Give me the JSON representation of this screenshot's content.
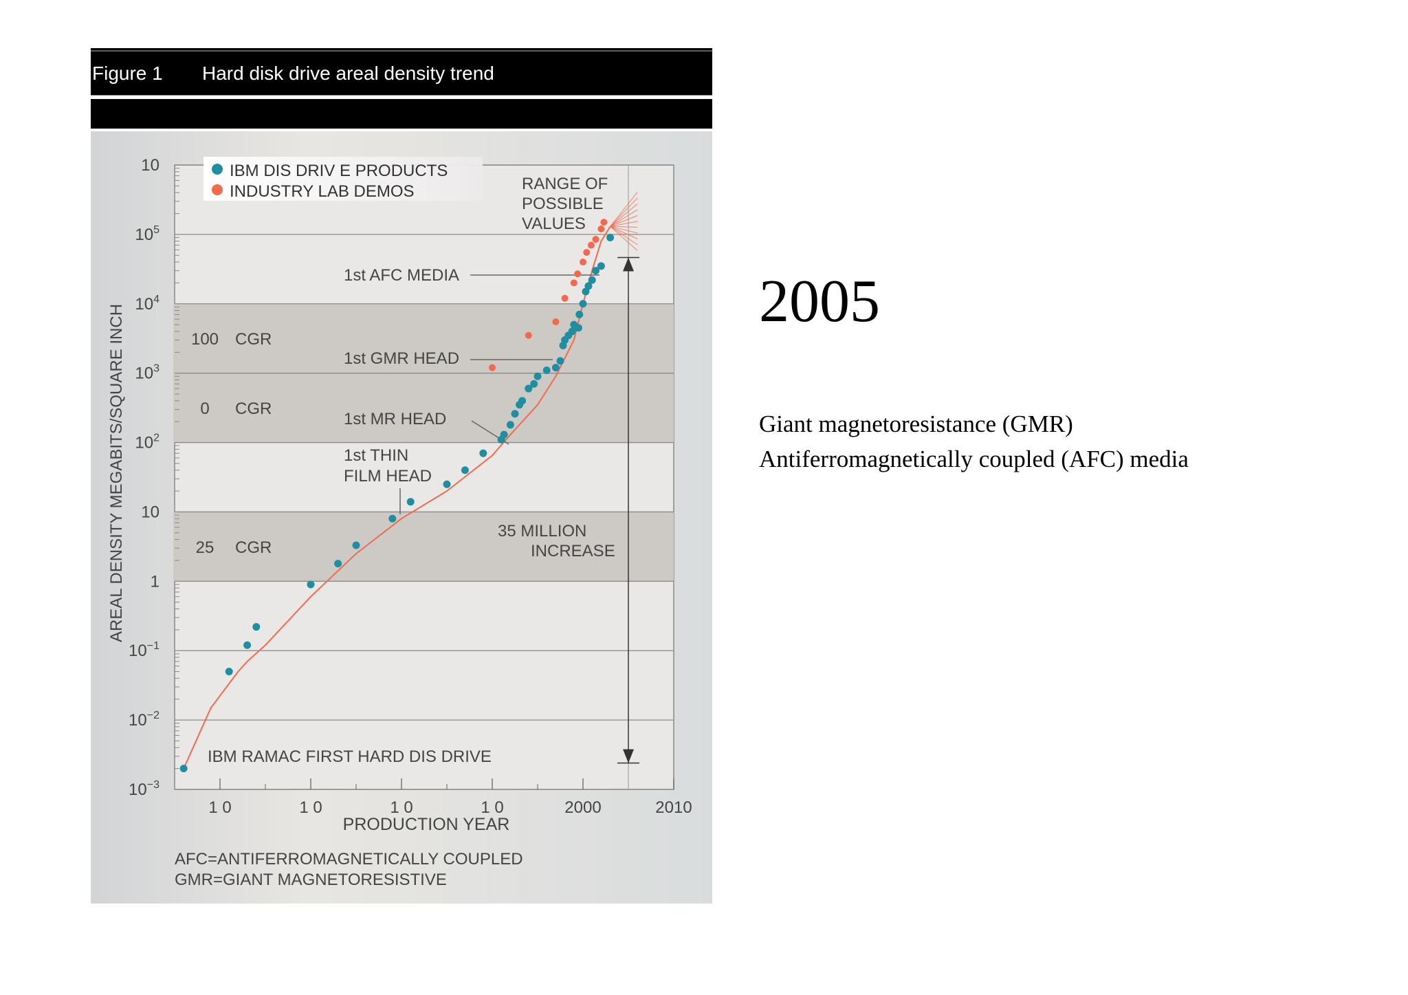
{
  "slide": {
    "year": "2005",
    "notes": [
      "Giant magnetoresistance (GMR)",
      "Antiferromagnetically coupled (AFC) media"
    ]
  },
  "figure": {
    "number": "Figure 1",
    "title": "Hard disk drive areal density trend",
    "footnotes": [
      "AFC=ANTIFERROMAGNETICALLY COUPLED",
      "GMR=GIANT MAGNETORESISTIVE"
    ]
  },
  "chart_data": {
    "type": "scatter",
    "xlabel": "PRODUCTION YEAR",
    "ylabel": "AREAL DENSITY MEGABITS/SQUARE INCH",
    "xlim": [
      1955,
      2010
    ],
    "ylim": [
      0.001,
      1000000
    ],
    "yscale": "log",
    "x_ticks": [
      "1 0",
      "1 0",
      "1 0",
      "1 0",
      "2000",
      "2010"
    ],
    "y_ticks": [
      "10-3",
      "10-2",
      "10-1",
      "1",
      "10",
      "102",
      "103",
      "104",
      "105",
      "10"
    ],
    "legend": {
      "placement": "top-left",
      "entries": [
        {
          "label": "IBM DIS DRIV E PRODUCTS",
          "color": "#1f8ea0"
        },
        {
          "label": "INDUSTRY LAB DEMOS",
          "color": "#f26a4b"
        }
      ]
    },
    "bands": [
      {
        "label_num": "25",
        "label": "CGR",
        "y_range": [
          1,
          10
        ]
      },
      {
        "label_num": "0",
        "label": "CGR",
        "y_range": [
          100,
          1000
        ]
      },
      {
        "label_num": "100",
        "label": "CGR",
        "y_range": [
          1000,
          10000
        ]
      }
    ],
    "trend_line": {
      "color": "#f26a4b",
      "points": [
        [
          1956,
          0.002
        ],
        [
          1959,
          0.015
        ],
        [
          1962,
          0.05
        ],
        [
          1963,
          0.07
        ],
        [
          1965,
          0.12
        ],
        [
          1970,
          0.6
        ],
        [
          1975,
          2.5
        ],
        [
          1980,
          8
        ],
        [
          1985,
          20
        ],
        [
          1990,
          65
        ],
        [
          1992,
          130
        ],
        [
          1995,
          350
        ],
        [
          1997,
          900
        ],
        [
          1999,
          3000
        ],
        [
          2000,
          10000
        ],
        [
          2001,
          30000
        ],
        [
          2002,
          80000
        ],
        [
          2003,
          130000
        ]
      ]
    },
    "projection": {
      "label": "RANGE OF POSSIBLE VALUES",
      "x_range": [
        2003,
        2006
      ],
      "y_low": 130000,
      "y_high": 1000000
    },
    "series": [
      {
        "name": "IBM DIS DRIV E PRODUCTS",
        "color": "#1f8ea0",
        "points": [
          [
            1956,
            0.002
          ],
          [
            1961,
            0.05
          ],
          [
            1963,
            0.12
          ],
          [
            1964,
            0.22
          ],
          [
            1970,
            0.9
          ],
          [
            1973,
            1.8
          ],
          [
            1975,
            3.3
          ],
          [
            1979,
            8
          ],
          [
            1981,
            14
          ],
          [
            1985,
            25
          ],
          [
            1987,
            40
          ],
          [
            1989,
            70
          ],
          [
            1991,
            110
          ],
          [
            1991.3,
            130
          ],
          [
            1992,
            180
          ],
          [
            1992.5,
            260
          ],
          [
            1993,
            350
          ],
          [
            1993.3,
            400
          ],
          [
            1994,
            600
          ],
          [
            1994.6,
            700
          ],
          [
            1995,
            900
          ],
          [
            1996,
            1100
          ],
          [
            1997,
            1200
          ],
          [
            1997.5,
            1500
          ],
          [
            1997.8,
            2500
          ],
          [
            1998,
            3000
          ],
          [
            1998.4,
            3500
          ],
          [
            1998.8,
            4000
          ],
          [
            1999,
            5000
          ],
          [
            1999.5,
            4500
          ],
          [
            1999.6,
            7000
          ],
          [
            2000,
            10000
          ],
          [
            2000.3,
            15000
          ],
          [
            2000.6,
            18000
          ],
          [
            2001,
            22000
          ],
          [
            2001.4,
            30000
          ],
          [
            2002,
            35000
          ],
          [
            2003,
            90000
          ]
        ]
      },
      {
        "name": "INDUSTRY LAB DEMOS",
        "color": "#f26a4b",
        "points": [
          [
            1990,
            1200
          ],
          [
            1994,
            3500
          ],
          [
            1997,
            5500
          ],
          [
            1998,
            12000
          ],
          [
            1999,
            20000
          ],
          [
            1999.4,
            27000
          ],
          [
            2000,
            40000
          ],
          [
            2000.4,
            55000
          ],
          [
            2000.9,
            70000
          ],
          [
            2001.4,
            85000
          ],
          [
            2002,
            120000
          ],
          [
            2002.3,
            150000
          ]
        ]
      }
    ],
    "annotations": [
      {
        "text": "1st THIN FILM HEAD",
        "x": 1980,
        "y": 8
      },
      {
        "text": "1st MR HEAD",
        "x": 1991,
        "y": 130
      },
      {
        "text": "1st GMR HEAD",
        "x": 1997,
        "y": 1200
      },
      {
        "text": "1st AFC MEDIA",
        "x": 2001,
        "y": 30000
      },
      {
        "text": "IBM RAMAC FIRST HARD DIS DRIVE",
        "x": 1956,
        "y": 0.002
      }
    ],
    "increase_arrow": {
      "text": "35 MILLION INCREASE",
      "y_range": [
        0.002,
        70000
      ]
    }
  }
}
